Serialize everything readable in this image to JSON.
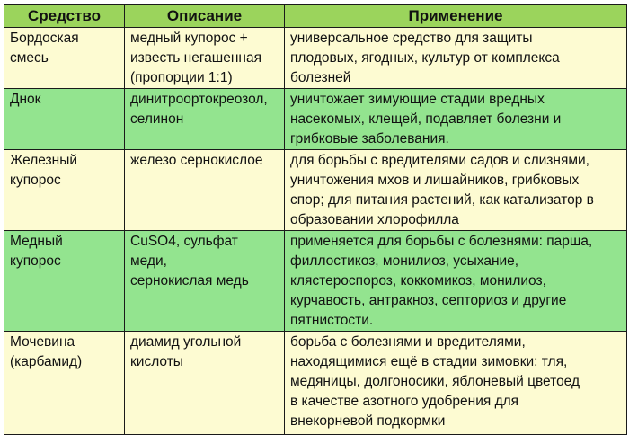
{
  "colors": {
    "header": "#9bd45c",
    "light_row": "#fdfbd2",
    "green_row": "#93e48f"
  },
  "headers": [
    "Средство",
    "Описание",
    "Применение"
  ],
  "rows": [
    {
      "name": "Бордоская\nсмесь",
      "description": "медный купорос +\nизвесть негашенная\n(пропорции 1:1)",
      "usage": "универсальное средство для защиты\nплодовых, ягодных, культур от комплекса\nболезней"
    },
    {
      "name": "Днок",
      "description": "динитроортокреозол,\nселинон",
      "usage": "уничтожает зимующие стадии вредных\nнасекомых, клещей, подавляет болезни и\nгрибковые заболевания."
    },
    {
      "name": "Железный\nкупорос",
      "description": "железо сернокислое",
      "usage": "для борьбы с вредителями садов и слизнями,\nуничтожения мхов и лишайников, грибковых\nспор; для питания растений, как катализатор в\nобразовании хлорофилла"
    },
    {
      "name": "Медный\nкупорос",
      "description": "CuSO4, сульфат меди,\nсернокислая медь",
      "usage": "применяется для борьбы с болезнями: парша,\nфиллостикоз, монилиоз, усыхание,\nклястероспороз, коккомикоз, монилиоз,\nкурчавость, антракноз, септориоз и другие\nпятнистости."
    },
    {
      "name": "Мочевина\n(карбамид)",
      "description": "диамид угольной\nкислоты",
      "usage": "борьба  с болезнями и вредителями,\nнаходящимися ещё в стадии зимовки: тля,\nмедяницы, долгоносики, яблоневый цветоед\nв качестве азотного удобрения для\nвнекорневой подкормки"
    }
  ]
}
